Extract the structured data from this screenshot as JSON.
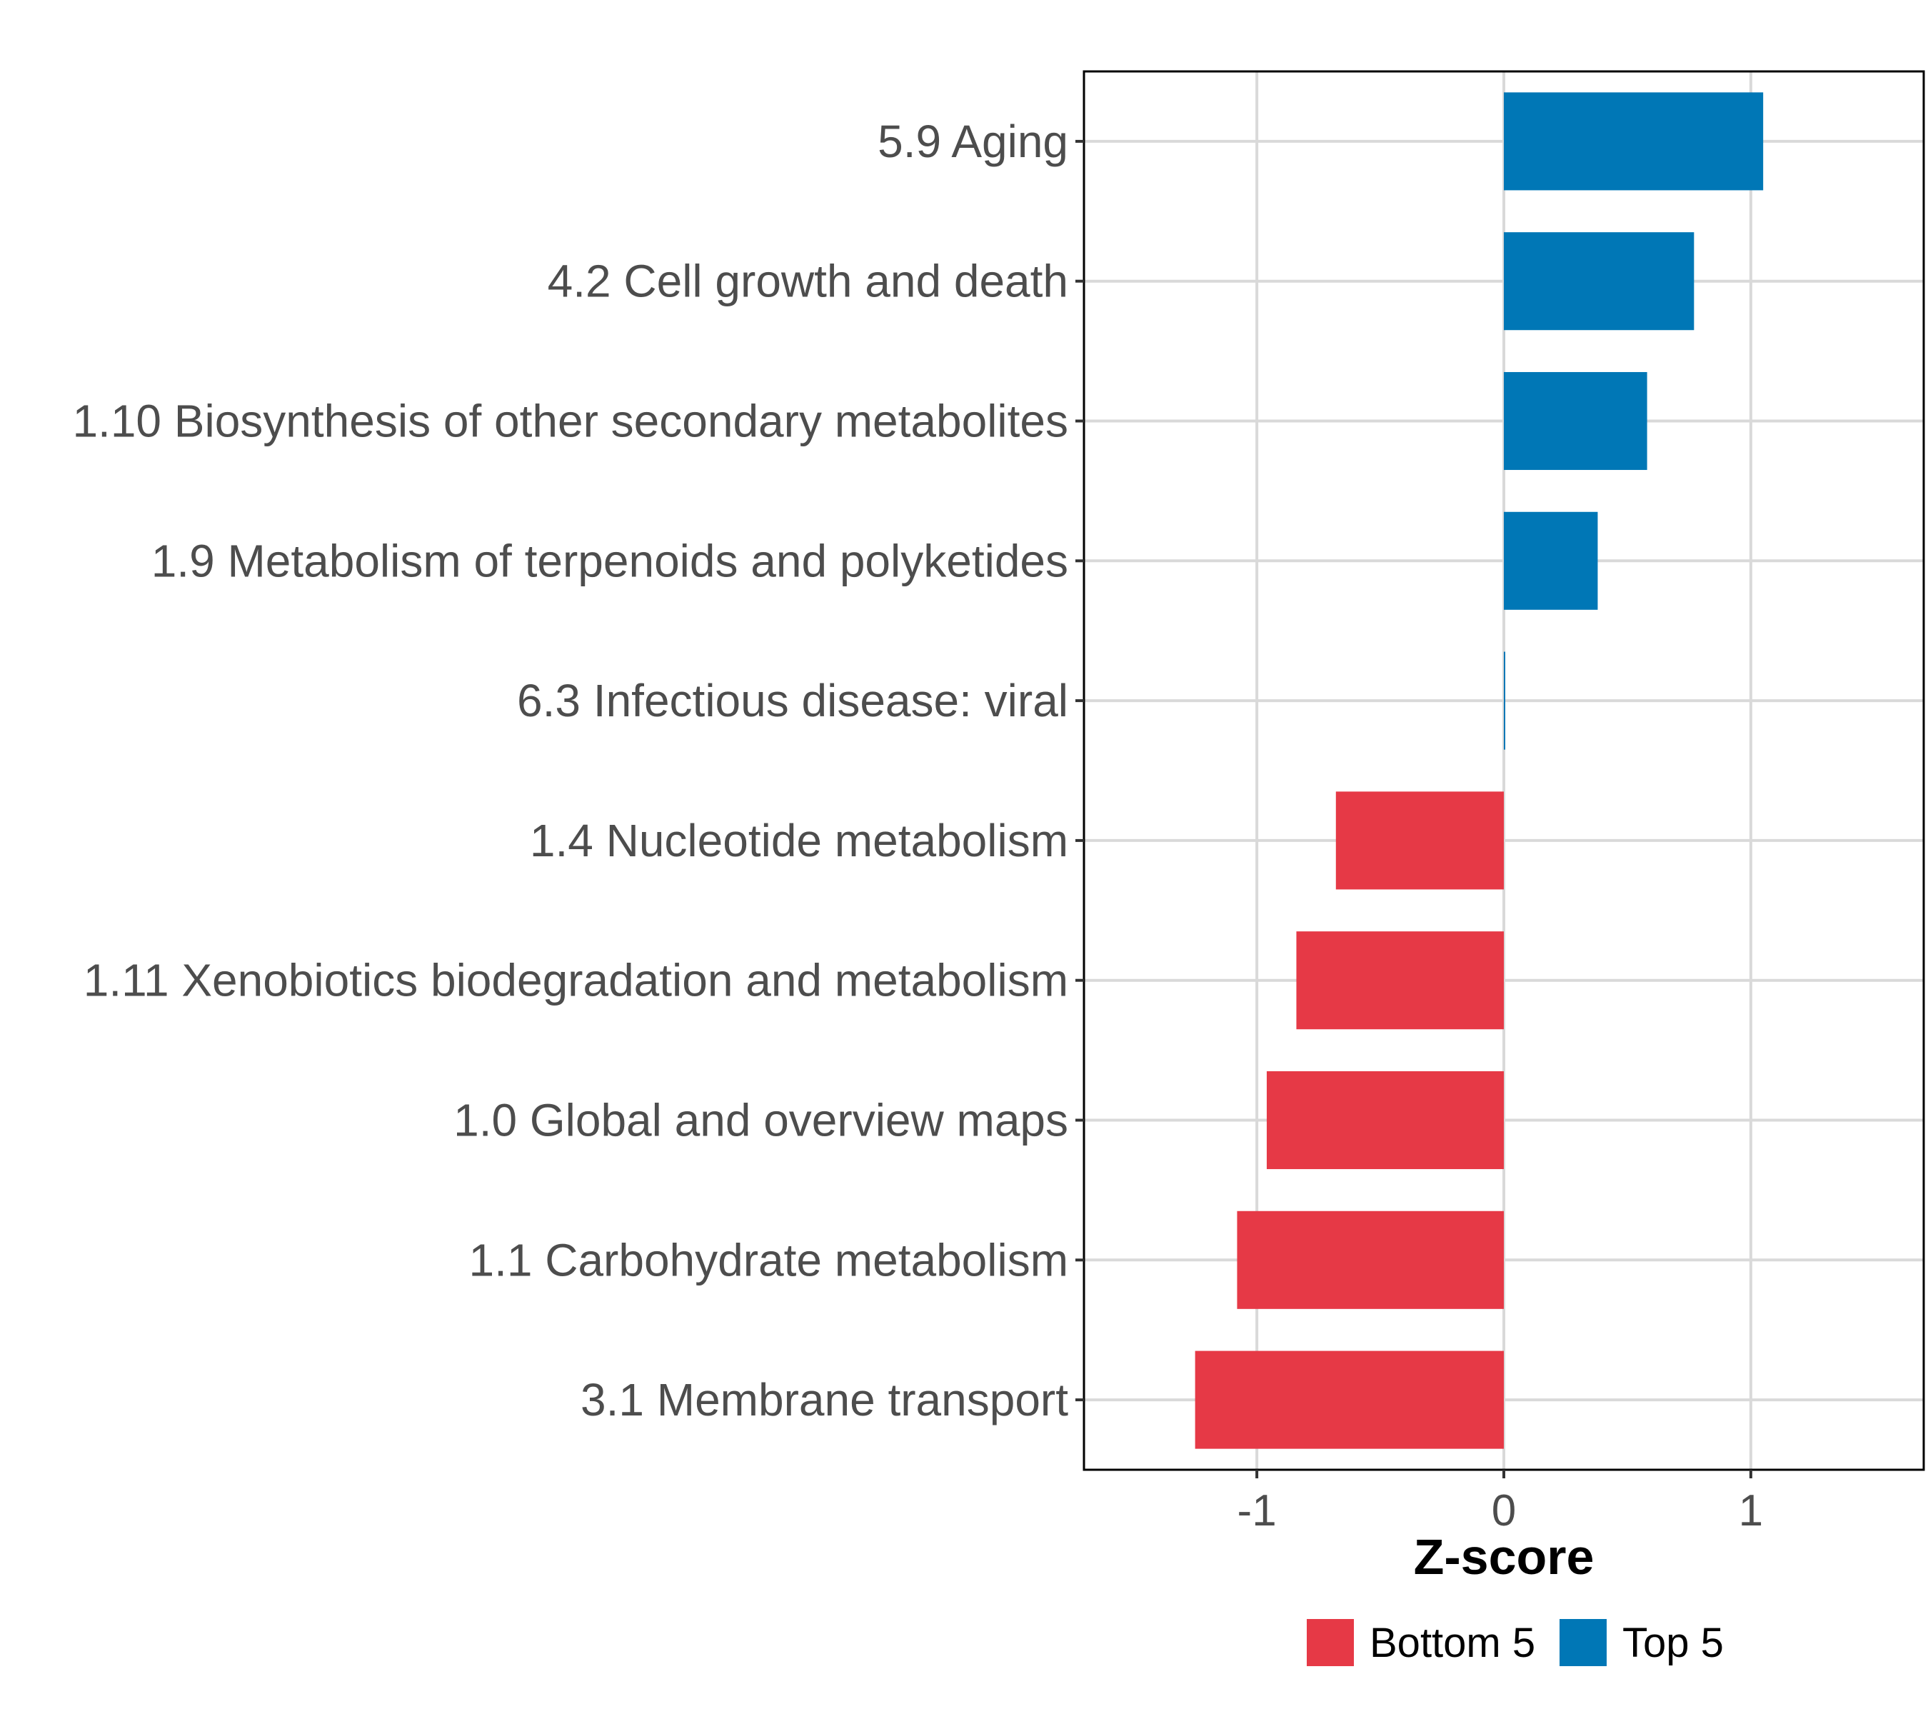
{
  "chart_data": {
    "type": "bar",
    "orientation": "horizontal",
    "categories": [
      "5.9 Aging",
      "4.2 Cell growth and death",
      "1.10 Biosynthesis of other secondary metabolites",
      "1.9 Metabolism of terpenoids and polyketides",
      "6.3 Infectious disease: viral",
      "1.4 Nucleotide metabolism",
      "1.11 Xenobiotics biodegradation and metabolism",
      "1.0 Global and overview maps",
      "1.1 Carbohydrate metabolism",
      "3.1 Membrane transport"
    ],
    "values": [
      1.05,
      0.77,
      0.58,
      0.38,
      0.005,
      -0.68,
      -0.84,
      -0.96,
      -1.08,
      -1.25
    ],
    "groups": [
      "Top 5",
      "Top 5",
      "Top 5",
      "Top 5",
      "Top 5",
      "Bottom 5",
      "Bottom 5",
      "Bottom 5",
      "Bottom 5",
      "Bottom 5"
    ],
    "xlabel": "Z-score",
    "ylabel": "",
    "xlim": [
      -1.7,
      1.7
    ],
    "xticks": [
      -1,
      0,
      1
    ],
    "xtick_labels": [
      "-1",
      "0",
      "1"
    ],
    "grid": true,
    "legend": {
      "position": "bottom",
      "entries": [
        {
          "label": "Bottom 5",
          "color": "#E63946"
        },
        {
          "label": "Top 5",
          "color": "#0077B6"
        }
      ]
    },
    "colors": {
      "Top 5": "#0077B6",
      "Bottom 5": "#E63946"
    }
  }
}
